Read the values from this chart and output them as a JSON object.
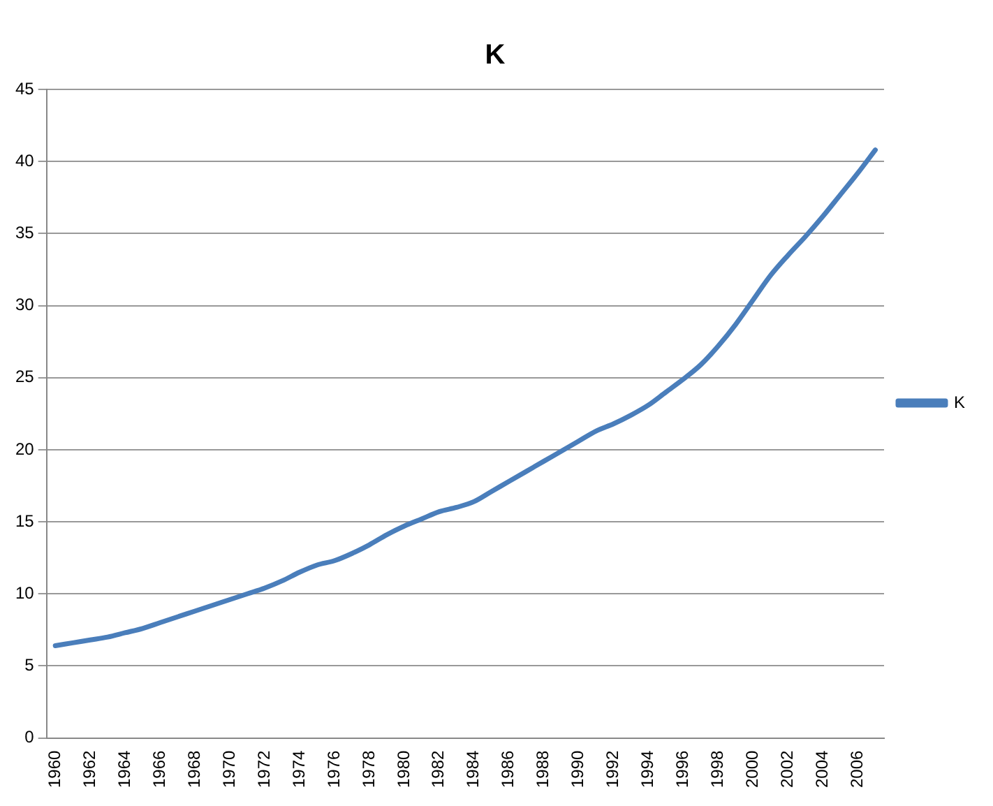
{
  "chart_data": {
    "type": "line",
    "title": "K",
    "categories": [
      "1960",
      null,
      "1962",
      null,
      "1964",
      null,
      "1966",
      null,
      "1968",
      null,
      "1970",
      null,
      "1972",
      null,
      "1974",
      null,
      "1976",
      null,
      "1978",
      null,
      "1980",
      null,
      "1982",
      null,
      "1984",
      null,
      "1986",
      null,
      "1988",
      null,
      "1990",
      null,
      "1992",
      null,
      "1994",
      null,
      "1996",
      null,
      "1998",
      null,
      "2000",
      null,
      "2002",
      null,
      "2004",
      null,
      "2006",
      null
    ],
    "series": [
      {
        "name": "K",
        "color": "#4a7ebb",
        "values": [
          6.4,
          6.6,
          6.8,
          7.0,
          7.3,
          7.6,
          8.0,
          8.4,
          8.8,
          9.2,
          9.6,
          10.0,
          10.4,
          10.9,
          11.5,
          12.0,
          12.3,
          12.8,
          13.4,
          14.1,
          14.7,
          15.2,
          15.7,
          16.0,
          16.4,
          17.1,
          17.8,
          18.5,
          19.2,
          19.9,
          20.6,
          21.3,
          21.8,
          22.4,
          23.1,
          24.0,
          24.9,
          25.9,
          27.2,
          28.7,
          30.4,
          32.1,
          33.5,
          34.8,
          36.2,
          37.7,
          39.2,
          40.8
        ]
      }
    ],
    "ylim": [
      0,
      45
    ],
    "yticks": [
      0,
      5,
      10,
      15,
      20,
      25,
      30,
      35,
      40,
      45
    ],
    "grid": "y",
    "legend": "right",
    "marker": "none",
    "line_style": "solid"
  }
}
